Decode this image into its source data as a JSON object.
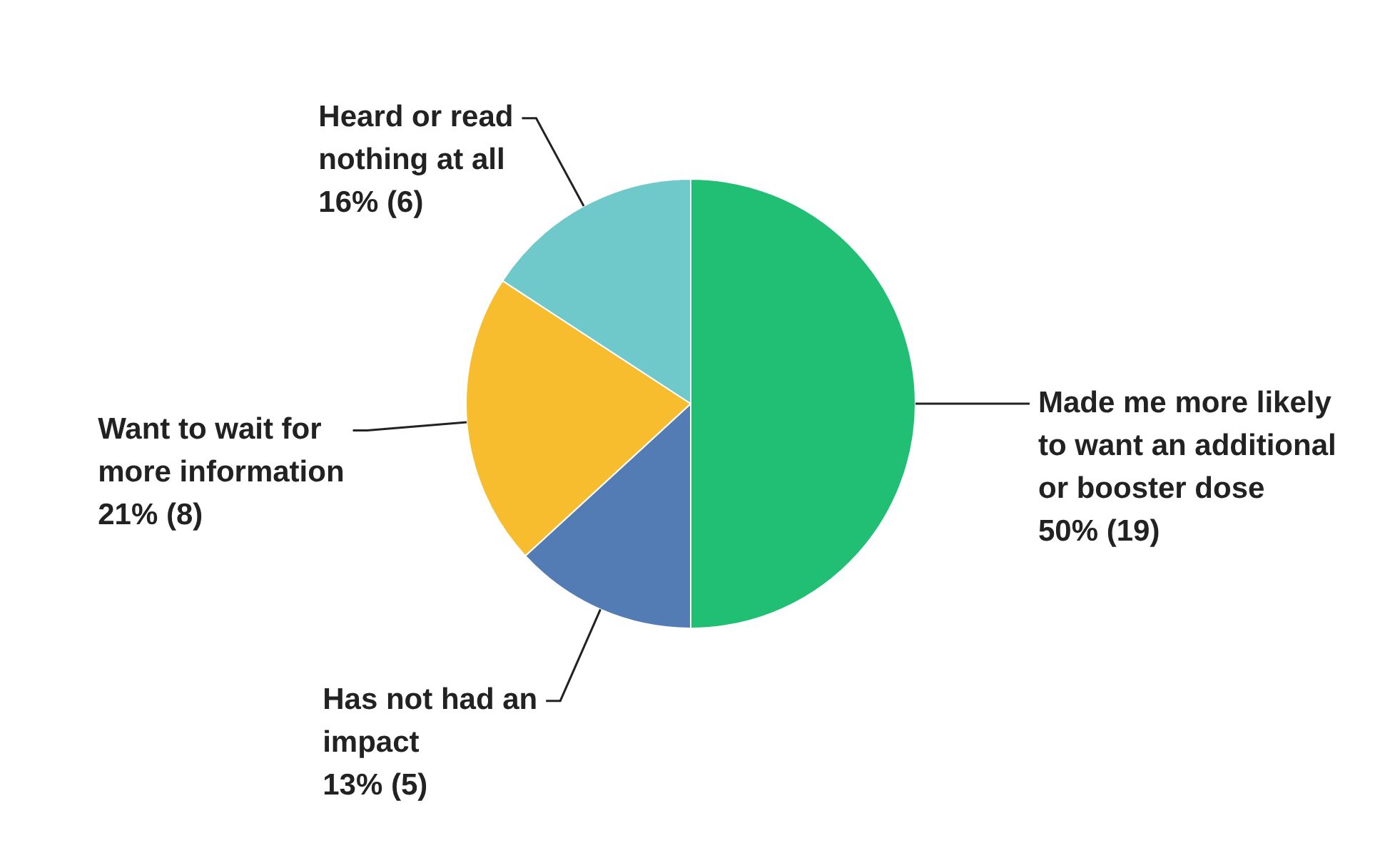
{
  "chart_data": {
    "type": "pie",
    "categories": [
      "Made me more likely to want an additional or booster dose",
      "Has not had an impact",
      "Want to wait for more information",
      "Heard or read nothing at all"
    ],
    "values": [
      19,
      5,
      8,
      6
    ],
    "colors": [
      "#21bf73",
      "#537bb4",
      "#f7bd2e",
      "#6fc9cb"
    ],
    "value_labels": [
      "50% (19)",
      "13% (5)",
      "21% (8)",
      "16% (6)"
    ]
  }
}
